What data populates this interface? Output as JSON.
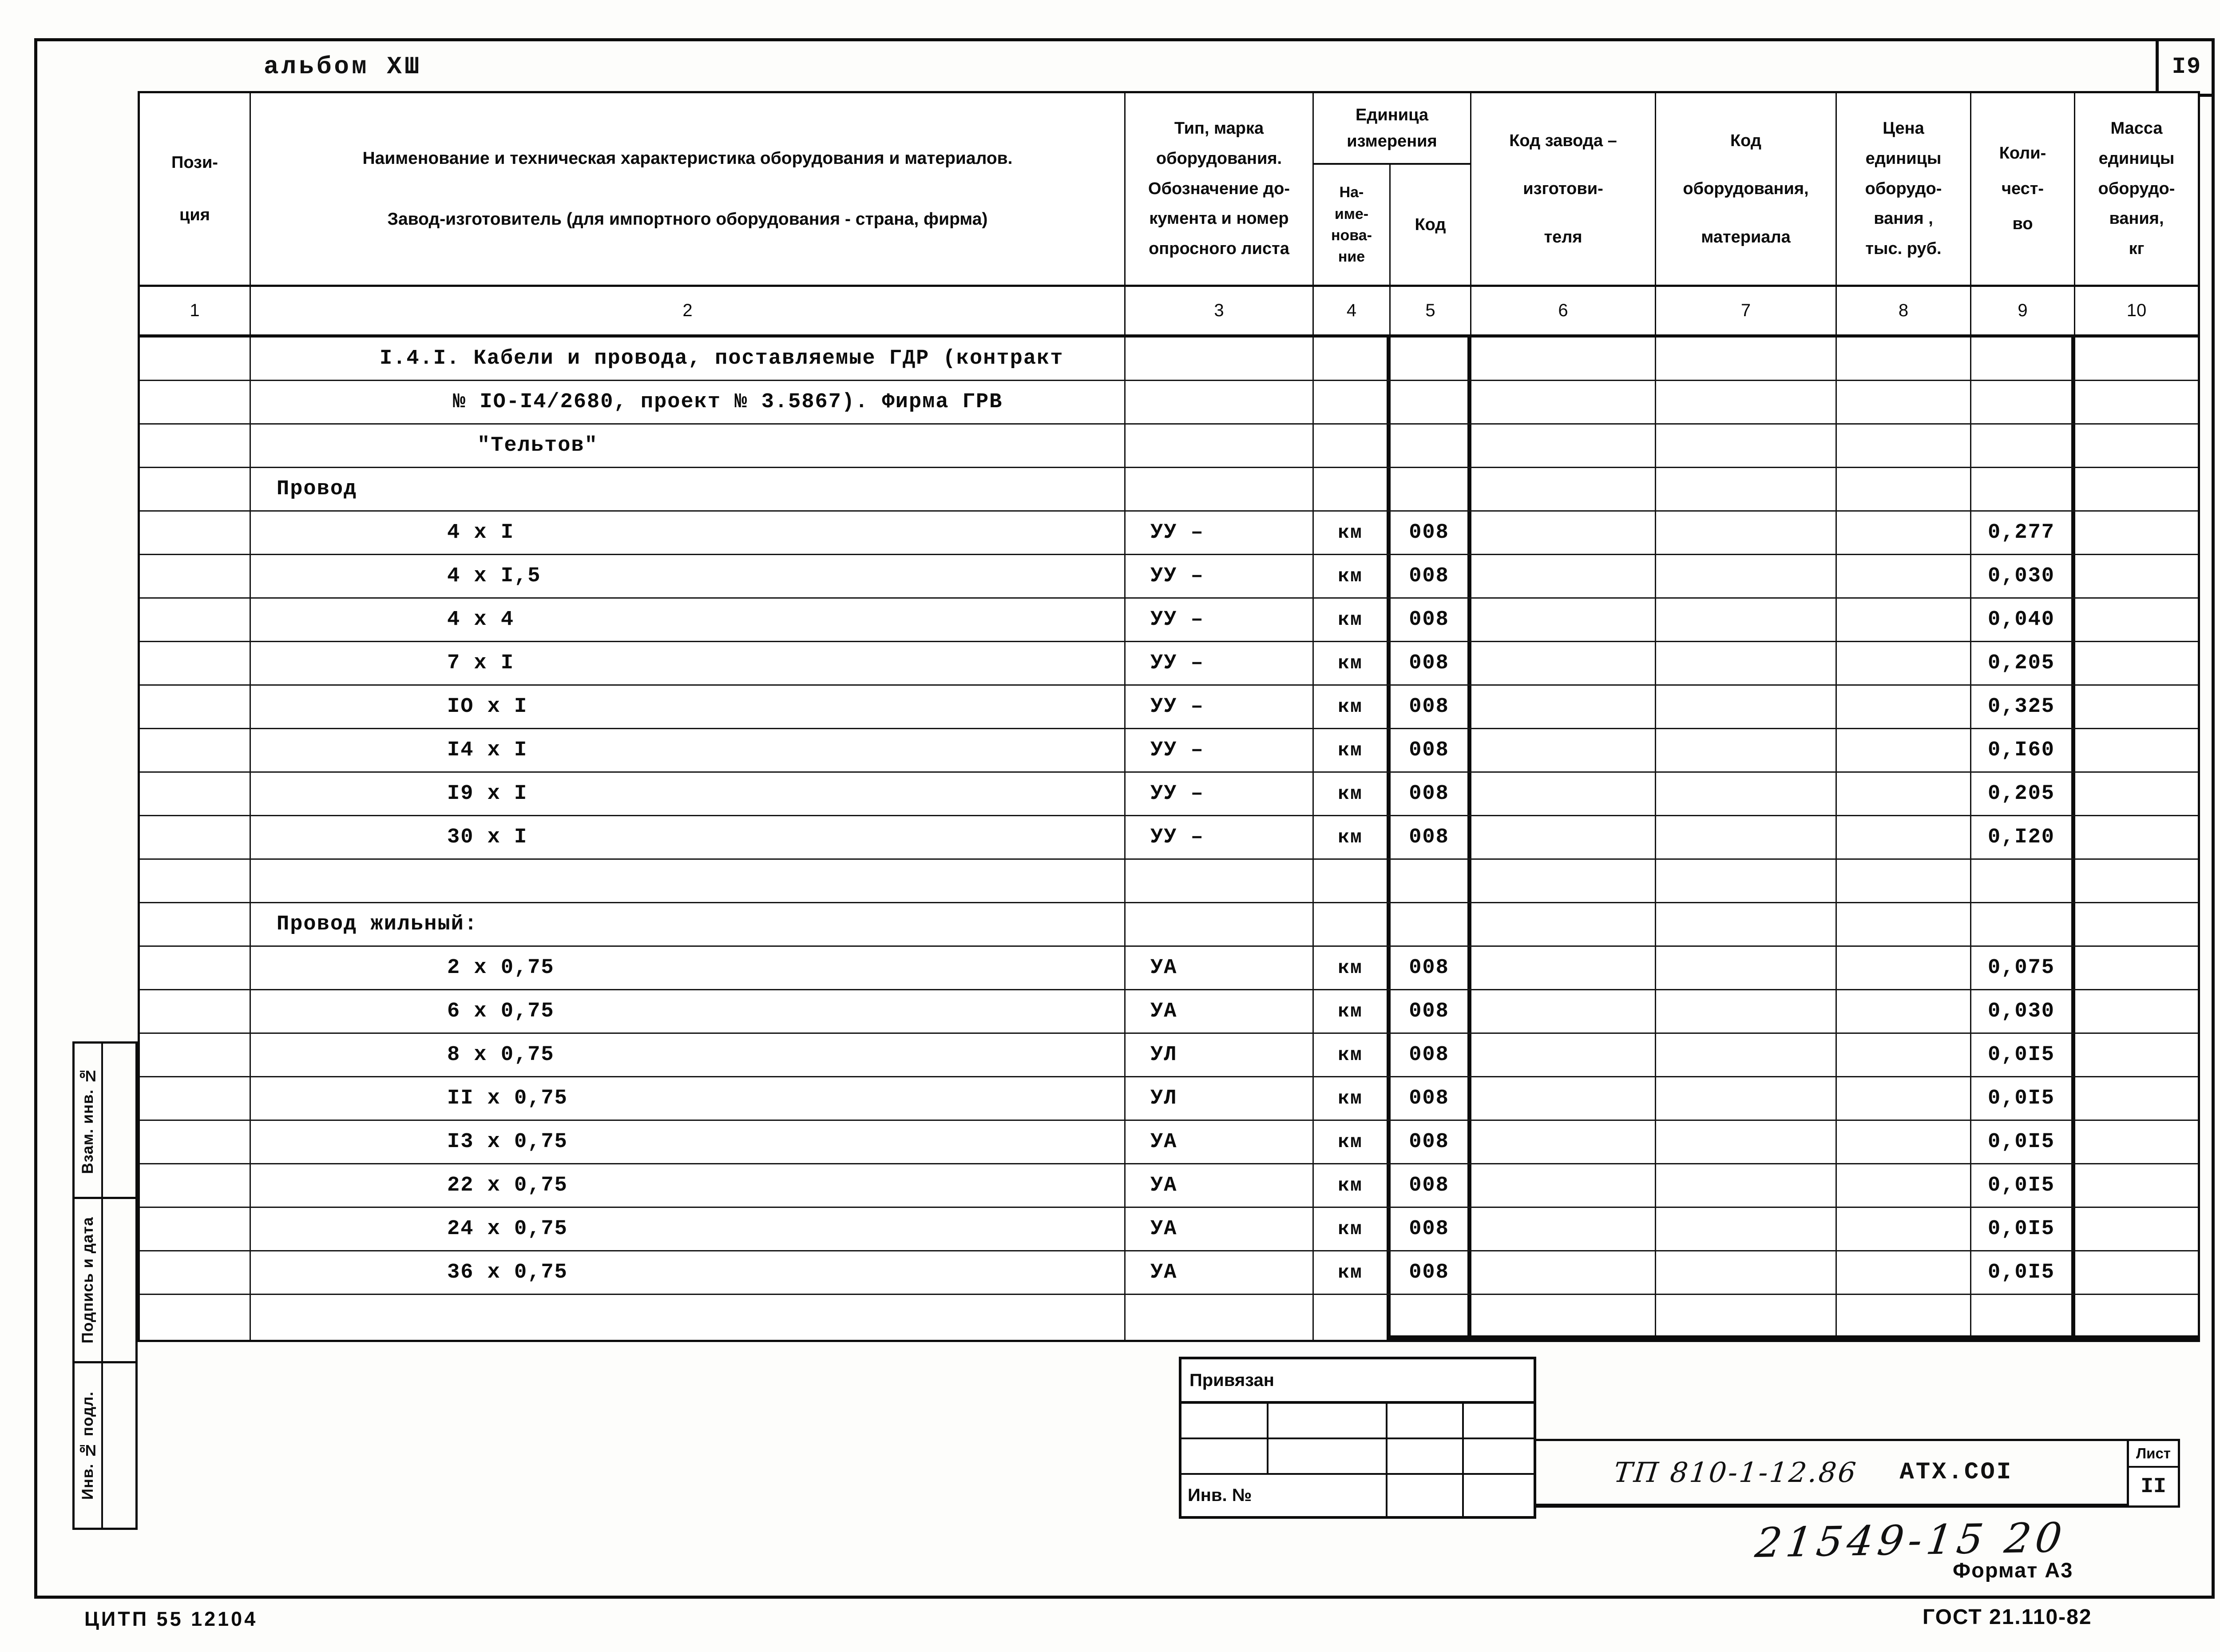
{
  "page": {
    "album_title": "альбом ХШ",
    "page_number": "I9",
    "footer_left": "ЦИТП  55 12104",
    "footer_gost": "ГОСТ 21.110-82",
    "format_note": "Формат А3"
  },
  "table": {
    "headers": {
      "position": "Пози-\nция",
      "name": "Наименование и техническая характеристика  оборудования и материалов.\nЗавод-изготовитель  (для импортного оборудования -  страна, фирма)",
      "type": "Тип,    марка\nоборудования.\nОбозначение  до-\nкумента  и  номер\nопросного  листа",
      "unit_group": "Единица\nизмерения",
      "unit_name": "На-\nиме-\nнова-\nние",
      "unit_code": "Код",
      "factory_code": "Код  завода –\nизготови-\nтеля",
      "equipment_code": "Код\nоборудования,\nматериала",
      "price": "Цена\nединицы\nоборудо-\nвания ,\nтыс. руб.",
      "quantity": "Коли-\nчест-\nво",
      "mass": "Масса\nединицы\nоборудо-\nвания,\nкг"
    },
    "column_numbers": [
      "1",
      "2",
      "3",
      "4",
      "5",
      "6",
      "7",
      "8",
      "9",
      "10"
    ],
    "rows": [
      {
        "kind": "h1",
        "name": "I.4.I. Кабели и провода, поставляемые ГДР (контракт",
        "type": "",
        "unit": "",
        "code": "",
        "qty": ""
      },
      {
        "kind": "h2",
        "name": "№ IO-I4/2680, проект № 3.5867). Фирма ГРВ",
        "type": "",
        "unit": "",
        "code": "",
        "qty": ""
      },
      {
        "kind": "h3",
        "name": "\"Тельтов\"",
        "type": "",
        "unit": "",
        "code": "",
        "qty": ""
      },
      {
        "kind": "group",
        "name": "Провод",
        "type": "",
        "unit": "",
        "code": "",
        "qty": ""
      },
      {
        "kind": "item",
        "name": "4 х I",
        "type": "УУ –",
        "unit": "км",
        "code": "008",
        "qty": "0,277"
      },
      {
        "kind": "item",
        "name": "4 х I,5",
        "type": "УУ –",
        "unit": "км",
        "code": "008",
        "qty": "0,030"
      },
      {
        "kind": "item",
        "name": "4 х 4",
        "type": "УУ –",
        "unit": "км",
        "code": "008",
        "qty": "0,040"
      },
      {
        "kind": "item",
        "name": "7 х I",
        "type": "УУ –",
        "unit": "км",
        "code": "008",
        "qty": "0,205"
      },
      {
        "kind": "item",
        "name": "IO х I",
        "type": "УУ –",
        "unit": "км",
        "code": "008",
        "qty": "0,325"
      },
      {
        "kind": "item",
        "name": "I4 х I",
        "type": "УУ –",
        "unit": "км",
        "code": "008",
        "qty": "0,I60"
      },
      {
        "kind": "item",
        "name": "I9 х I",
        "type": "УУ –",
        "unit": "км",
        "code": "008",
        "qty": "0,205"
      },
      {
        "kind": "item",
        "name": "30 х I",
        "type": "УУ –",
        "unit": "км",
        "code": "008",
        "qty": "0,I20"
      },
      {
        "kind": "empty",
        "name": "",
        "type": "",
        "unit": "",
        "code": "",
        "qty": ""
      },
      {
        "kind": "group",
        "name": "Провод жильный:",
        "type": "",
        "unit": "",
        "code": "",
        "qty": ""
      },
      {
        "kind": "item",
        "name": "2 х 0,75",
        "type": "УА",
        "unit": "км",
        "code": "008",
        "qty": "0,075"
      },
      {
        "kind": "item",
        "name": "6 х 0,75",
        "type": "УА",
        "unit": "км",
        "code": "008",
        "qty": "0,030"
      },
      {
        "kind": "item",
        "name": "8 х 0,75",
        "type": "УЛ",
        "unit": "км",
        "code": "008",
        "qty": "0,0I5"
      },
      {
        "kind": "item",
        "name": "II х 0,75",
        "type": "УЛ",
        "unit": "км",
        "code": "008",
        "qty": "0,0I5"
      },
      {
        "kind": "item",
        "name": "I3 х 0,75",
        "type": "УА",
        "unit": "км",
        "code": "008",
        "qty": "0,0I5"
      },
      {
        "kind": "item",
        "name": "22 х 0,75",
        "type": "УА",
        "unit": "км",
        "code": "008",
        "qty": "0,0I5"
      },
      {
        "kind": "item",
        "name": "24 х 0,75",
        "type": "УА",
        "unit": "км",
        "code": "008",
        "qty": "0,0I5"
      },
      {
        "kind": "item",
        "name": "36 х 0,75",
        "type": "УА",
        "unit": "км",
        "code": "008",
        "qty": "0,0I5"
      }
    ]
  },
  "sidebar": {
    "labels": [
      "Взам. инв. №",
      "Подпись и дата",
      "Инв. № подл."
    ]
  },
  "stamp": {
    "title": "Привязан",
    "inv_label": "Инв.  №"
  },
  "title_block": {
    "doc_number": "ТП 810-1-12.86",
    "doc_code": "АТХ.СОI",
    "sheet_label": "Лист",
    "sheet_value": "II",
    "handwritten_number": "21549-15  20"
  }
}
